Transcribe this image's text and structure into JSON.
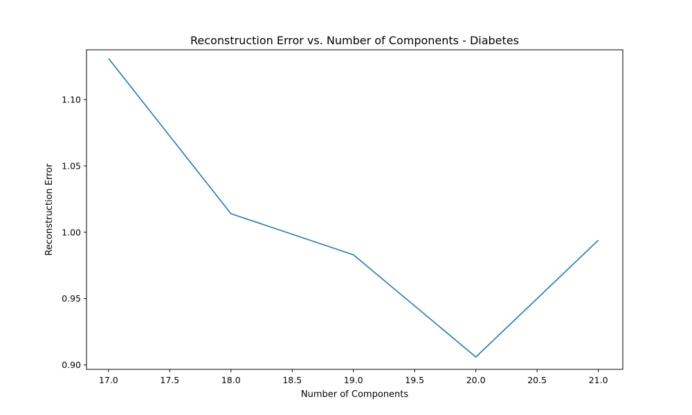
{
  "chart_data": {
    "type": "line",
    "title": "Reconstruction Error vs. Number of Components - Diabetes",
    "xlabel": "Number of Components",
    "ylabel": "Reconstruction Error",
    "xlim": [
      16.82,
      21.2
    ],
    "ylim": [
      0.8967,
      1.1375
    ],
    "xticks": [
      "17.0",
      "17.5",
      "18.0",
      "18.5",
      "19.0",
      "19.5",
      "20.0",
      "20.5",
      "21.0"
    ],
    "yticks": [
      "0.90",
      "0.95",
      "1.00",
      "1.05",
      "1.10"
    ],
    "grid": false,
    "series": [
      {
        "color": "#1f77b4",
        "x": [
          17,
          18,
          19,
          20,
          21
        ],
        "y": [
          1.131,
          1.014,
          0.983,
          0.906,
          0.994
        ]
      }
    ]
  }
}
